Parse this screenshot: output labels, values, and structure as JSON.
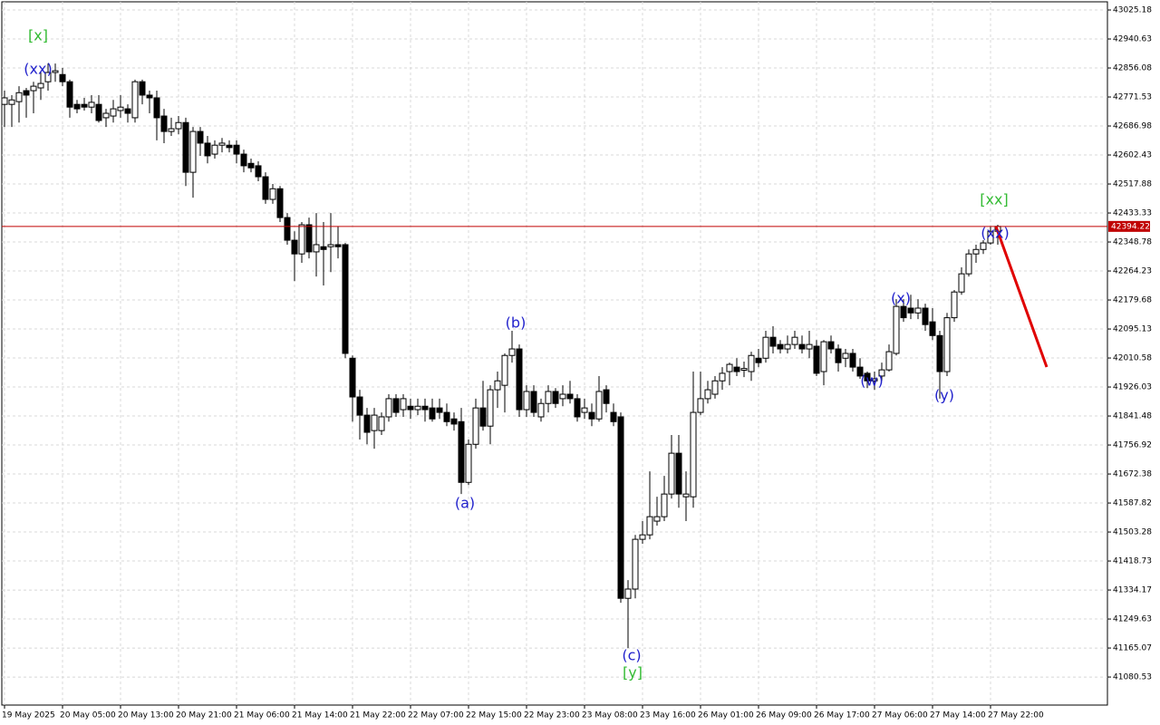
{
  "chart_data": {
    "type": "candlestick",
    "bull_color": "#ffffff",
    "bear_color": "#000000",
    "grid": true,
    "current_price": 42394.22,
    "current_price_color": "#c00000",
    "ylim": [
      40998.8,
      43049.0
    ],
    "yticks": [
      43025.18,
      42940.63,
      42856.08,
      42771.53,
      42686.98,
      42602.43,
      42517.88,
      42433.33,
      42348.78,
      42264.23,
      42179.68,
      42095.13,
      42010.58,
      41926.03,
      41841.48,
      41756.92,
      41672.38,
      41587.82,
      41503.28,
      41418.73,
      41334.17,
      41249.63,
      41165.07,
      41080.53
    ],
    "xlim": [
      -0.375,
      152.125
    ],
    "xticks": [
      {
        "value": 0,
        "label": "19 May 2025"
      },
      {
        "value": 8,
        "label": "20 May 05:00"
      },
      {
        "value": 16,
        "label": "20 May 13:00"
      },
      {
        "value": 24,
        "label": "20 May 21:00"
      },
      {
        "value": 32,
        "label": "21 May 06:00"
      },
      {
        "value": 40,
        "label": "21 May 14:00"
      },
      {
        "value": 48,
        "label": "21 May 22:00"
      },
      {
        "value": 56,
        "label": "22 May 07:00"
      },
      {
        "value": 64,
        "label": "22 May 15:00"
      },
      {
        "value": 72,
        "label": "22 May 23:00"
      },
      {
        "value": 80,
        "label": "23 May 08:00"
      },
      {
        "value": 88,
        "label": "23 May 16:00"
      },
      {
        "value": 96,
        "label": "26 May 01:00"
      },
      {
        "value": 104,
        "label": "26 May 09:00"
      },
      {
        "value": 112,
        "label": "26 May 17:00"
      },
      {
        "value": 120,
        "label": "27 May 06:00"
      },
      {
        "value": 128,
        "label": "27 May 14:00"
      },
      {
        "value": 136,
        "label": "27 May 22:00"
      }
    ],
    "annotations": [
      {
        "text": "[x]",
        "color": "#33bb33"
      },
      {
        "text": "(xx)",
        "color": "#2222cc"
      },
      {
        "text": "(a)",
        "color": "#2222cc"
      },
      {
        "text": "(b)",
        "color": "#2222cc"
      },
      {
        "text": "(c)",
        "color": "#2222cc"
      },
      {
        "text": "[y]",
        "color": "#33bb33"
      },
      {
        "text": "(w)",
        "color": "#2222cc"
      },
      {
        "text": "(x)",
        "color": "#2222cc"
      },
      {
        "text": "(y)",
        "color": "#2222cc"
      },
      {
        "text": "[xx]",
        "color": "#33bb33"
      },
      {
        "text": "(xx)",
        "color": "#2222cc"
      }
    ],
    "ohlc": [
      [
        42750,
        42790,
        42684,
        42769
      ],
      [
        42750,
        42777,
        42684,
        42763
      ],
      [
        42758,
        42803,
        42697,
        42784
      ],
      [
        42790,
        42798,
        42711,
        42777
      ],
      [
        42790,
        42816,
        42724,
        42803
      ],
      [
        42798,
        42843,
        42763,
        42811
      ],
      [
        42816,
        42869,
        42790,
        42843
      ],
      [
        42843,
        42869,
        42816,
        42848
      ],
      [
        42837,
        42856,
        42803,
        42816
      ],
      [
        42816,
        42822,
        42711,
        42742
      ],
      [
        42750,
        42763,
        42724,
        42737
      ],
      [
        42750,
        42769,
        42732,
        42742
      ],
      [
        42742,
        42777,
        42724,
        42756
      ],
      [
        42750,
        42777,
        42697,
        42703
      ],
      [
        42711,
        42737,
        42684,
        42724
      ],
      [
        42716,
        42763,
        42697,
        42737
      ],
      [
        42732,
        42777,
        42711,
        42742
      ],
      [
        42737,
        42750,
        42697,
        42724
      ],
      [
        42711,
        42822,
        42697,
        42816
      ],
      [
        42816,
        42822,
        42750,
        42777
      ],
      [
        42777,
        42790,
        42724,
        42769
      ],
      [
        42769,
        42790,
        42645,
        42711
      ],
      [
        42716,
        42737,
        42637,
        42671
      ],
      [
        42671,
        42711,
        42658,
        42679
      ],
      [
        42679,
        42716,
        42663,
        42697
      ],
      [
        42697,
        42711,
        42512,
        42552
      ],
      [
        42552,
        42684,
        42478,
        42671
      ],
      [
        42671,
        42684,
        42600,
        42637
      ],
      [
        42637,
        42658,
        42578,
        42600
      ],
      [
        42605,
        42645,
        42592,
        42631
      ],
      [
        42631,
        42652,
        42610,
        42637
      ],
      [
        42631,
        42645,
        42610,
        42624
      ],
      [
        42631,
        42645,
        42578,
        42605
      ],
      [
        42605,
        42618,
        42552,
        42571
      ],
      [
        42578,
        42592,
        42552,
        42565
      ],
      [
        42571,
        42584,
        42526,
        42539
      ],
      [
        42539,
        42552,
        42460,
        42473
      ],
      [
        42473,
        42518,
        42460,
        42504
      ],
      [
        42504,
        42512,
        42407,
        42420
      ],
      [
        42420,
        42433,
        42341,
        42354
      ],
      [
        42354,
        42380,
        42235,
        42314
      ],
      [
        42314,
        42407,
        42288,
        42399
      ],
      [
        42399,
        42420,
        42301,
        42320
      ],
      [
        42320,
        42433,
        42248,
        42341
      ],
      [
        42335,
        42407,
        42222,
        42327
      ],
      [
        42335,
        42433,
        42261,
        42341
      ],
      [
        42341,
        42394,
        42301,
        42335
      ],
      [
        42341,
        42346,
        42010,
        42024
      ],
      [
        42010,
        42018,
        41825,
        41897
      ],
      [
        41897,
        41918,
        41773,
        41844
      ],
      [
        41844,
        41865,
        41759,
        41794
      ],
      [
        41799,
        41865,
        41746,
        41844
      ],
      [
        41799,
        41852,
        41786,
        41839
      ],
      [
        41839,
        41905,
        41825,
        41892
      ],
      [
        41892,
        41905,
        41839,
        41852
      ],
      [
        41860,
        41905,
        41839,
        41892
      ],
      [
        41870,
        41892,
        41833,
        41860
      ],
      [
        41860,
        41892,
        41844,
        41870
      ],
      [
        41870,
        41892,
        41825,
        41860
      ],
      [
        41865,
        41892,
        41825,
        41833
      ],
      [
        41865,
        41892,
        41833,
        41852
      ],
      [
        41852,
        41878,
        41812,
        41825
      ],
      [
        41833,
        41852,
        41799,
        41818
      ],
      [
        41825,
        41865,
        41614,
        41648
      ],
      [
        41648,
        41773,
        41640,
        41759
      ],
      [
        41759,
        41892,
        41746,
        41865
      ],
      [
        41865,
        41944,
        41799,
        41812
      ],
      [
        41812,
        41931,
        41759,
        41918
      ],
      [
        41918,
        41971,
        41865,
        41944
      ],
      [
        41931,
        42024,
        41852,
        42018
      ],
      [
        42018,
        42090,
        41997,
        42037
      ],
      [
        42037,
        42050,
        41839,
        41860
      ],
      [
        41860,
        41931,
        41839,
        41913
      ],
      [
        41913,
        41931,
        41839,
        41852
      ],
      [
        41839,
        41892,
        41825,
        41878
      ],
      [
        41878,
        41931,
        41852,
        41913
      ],
      [
        41913,
        41923,
        41865,
        41878
      ],
      [
        41892,
        41931,
        41870,
        41905
      ],
      [
        41905,
        41944,
        41878,
        41892
      ],
      [
        41892,
        41905,
        41825,
        41839
      ],
      [
        41852,
        41892,
        41833,
        41865
      ],
      [
        41852,
        41878,
        41812,
        41833
      ],
      [
        41833,
        41958,
        41825,
        41913
      ],
      [
        41918,
        41931,
        41852,
        41878
      ],
      [
        41852,
        41878,
        41812,
        41825
      ],
      [
        41839,
        41852,
        41297,
        41310
      ],
      [
        41310,
        41363,
        41165,
        41337
      ],
      [
        41337,
        41495,
        41310,
        41482
      ],
      [
        41482,
        41535,
        41469,
        41495
      ],
      [
        41495,
        41680,
        41482,
        41548
      ],
      [
        41535,
        41606,
        41522,
        41548
      ],
      [
        41548,
        41667,
        41535,
        41614
      ],
      [
        41614,
        41786,
        41601,
        41733
      ],
      [
        41733,
        41786,
        41574,
        41614
      ],
      [
        41606,
        41680,
        41535,
        41614
      ],
      [
        41606,
        41971,
        41574,
        41852
      ],
      [
        41852,
        41971,
        41844,
        41892
      ],
      [
        41892,
        41944,
        41878,
        41918
      ],
      [
        41905,
        41958,
        41892,
        41944
      ],
      [
        41944,
        41984,
        41918,
        41966
      ],
      [
        41971,
        41997,
        41931,
        41992
      ],
      [
        41984,
        42010,
        41958,
        41971
      ],
      [
        41975,
        42000,
        41955,
        41980
      ],
      [
        41971,
        42029,
        41944,
        42018
      ],
      [
        42010,
        42037,
        41984,
        41997
      ],
      [
        42010,
        42090,
        41997,
        42071
      ],
      [
        42071,
        42103,
        42024,
        42045
      ],
      [
        42050,
        42063,
        42024,
        42037
      ],
      [
        42037,
        42076,
        42024,
        42050
      ],
      [
        42050,
        42090,
        42037,
        42071
      ],
      [
        42050,
        42076,
        42024,
        42037
      ],
      [
        42037,
        42090,
        42010,
        42050
      ],
      [
        42045,
        42063,
        41958,
        41966
      ],
      [
        41971,
        42063,
        41931,
        42058
      ],
      [
        42058,
        42076,
        42024,
        42037
      ],
      [
        42037,
        42050,
        41971,
        41997
      ],
      [
        42010,
        42037,
        41984,
        42024
      ],
      [
        42024,
        42037,
        41971,
        41984
      ],
      [
        41984,
        42010,
        41950,
        41958
      ],
      [
        41966,
        41971,
        41923,
        41944
      ],
      [
        41944,
        41971,
        41918,
        41950
      ],
      [
        41958,
        41997,
        41944,
        41976
      ],
      [
        41976,
        42050,
        41971,
        42029
      ],
      [
        42024,
        42182,
        42018,
        42161
      ],
      [
        42161,
        42182,
        42116,
        42128
      ],
      [
        42156,
        42195,
        42124,
        42142
      ],
      [
        42142,
        42182,
        42124,
        42156
      ],
      [
        42156,
        42169,
        42090,
        42108
      ],
      [
        42116,
        42156,
        42063,
        42076
      ],
      [
        42076,
        42090,
        41892,
        41971
      ],
      [
        41971,
        42142,
        41958,
        42128
      ],
      [
        42128,
        42209,
        42116,
        42203
      ],
      [
        42203,
        42275,
        42195,
        42256
      ],
      [
        42256,
        42327,
        42248,
        42314
      ],
      [
        42314,
        42341,
        42288,
        42327
      ],
      [
        42327,
        42354,
        42314,
        42346
      ],
      [
        42346,
        42394,
        42341,
        42380
      ],
      [
        42380,
        42399,
        42341,
        42394.22
      ]
    ]
  }
}
